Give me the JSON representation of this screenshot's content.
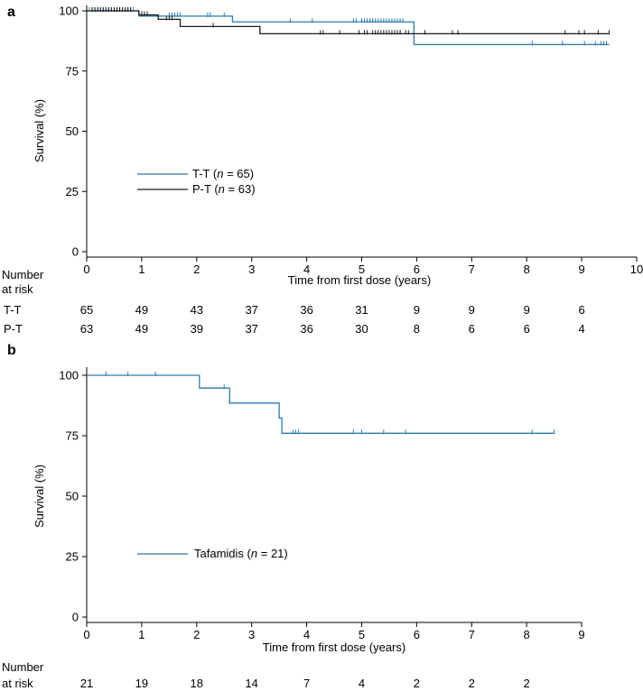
{
  "chart_data": [
    {
      "panel": "a",
      "type": "line",
      "subtype": "kaplan-meier",
      "xlabel": "Time from first dose (years)",
      "ylabel": "Survival (%)",
      "xlim": [
        0,
        10
      ],
      "ylim": [
        0,
        100
      ],
      "xticks": [
        "0",
        "1",
        "2",
        "3",
        "4",
        "5",
        "6",
        "7",
        "8",
        "9",
        "10"
      ],
      "yticks": [
        "0",
        "25",
        "50",
        "75",
        "100"
      ],
      "legend": {
        "placement": "left-middle",
        "entries": [
          {
            "series": "T-T",
            "n": "65"
          },
          {
            "series": "P-T",
            "n": "63"
          }
        ]
      },
      "series": [
        {
          "name": "T-T",
          "color": "#2a7bb0",
          "steps": [
            [
              0,
              100
            ],
            [
              0.95,
              97.8
            ],
            [
              2.65,
              95.4
            ],
            [
              5.95,
              86.0
            ],
            [
              9.5,
              86.0
            ]
          ],
          "censors": [
            0.05,
            0.1,
            0.15,
            0.2,
            0.25,
            0.3,
            0.35,
            0.4,
            0.45,
            0.5,
            0.55,
            0.6,
            0.65,
            0.7,
            0.75,
            0.8,
            0.85,
            1.5,
            1.55,
            1.6,
            1.65,
            1.7,
            2.2,
            2.2,
            2.25,
            2.5,
            3.7,
            4.1,
            4.85,
            4.9,
            5.0,
            5.05,
            5.1,
            5.15,
            5.2,
            5.25,
            5.3,
            5.35,
            5.4,
            5.45,
            5.5,
            5.55,
            5.6,
            5.65,
            5.7,
            5.75,
            8.1,
            8.65,
            9.05,
            9.25,
            9.35,
            9.4,
            9.45
          ]
        },
        {
          "name": "P-T",
          "color": "#1a1a1a",
          "steps": [
            [
              0,
              100
            ],
            [
              0.95,
              98.3
            ],
            [
              1.3,
              96.5
            ],
            [
              1.7,
              93.5
            ],
            [
              3.15,
              90.5
            ],
            [
              9.5,
              90.5
            ]
          ],
          "censors": [
            0.1,
            0.15,
            0.2,
            0.25,
            0.3,
            0.35,
            0.4,
            0.45,
            0.5,
            0.55,
            0.6,
            0.65,
            0.7,
            0.75,
            0.8,
            1.0,
            1.05,
            1.1,
            1.45,
            1.5,
            1.55,
            2.3,
            4.25,
            4.3,
            4.6,
            4.95,
            5.05,
            5.1,
            5.2,
            5.25,
            5.3,
            5.35,
            5.4,
            5.45,
            5.5,
            5.55,
            5.6,
            5.65,
            5.7,
            5.8,
            5.85,
            6.15,
            6.65,
            6.75,
            8.7,
            8.95,
            9.05,
            9.3,
            9.5
          ]
        }
      ],
      "at_risk": {
        "label_line1": "Number",
        "label_line2": "at risk",
        "times": [
          0,
          1,
          2,
          3,
          4,
          5,
          6,
          7,
          8,
          9
        ],
        "rows": [
          {
            "group": "T-T",
            "values": [
              "65",
              "49",
              "43",
              "37",
              "36",
              "31",
              "9",
              "9",
              "9",
              "6"
            ]
          },
          {
            "group": "P-T",
            "values": [
              "63",
              "49",
              "39",
              "37",
              "36",
              "30",
              "8",
              "6",
              "6",
              "4"
            ]
          }
        ]
      }
    },
    {
      "panel": "b",
      "type": "line",
      "subtype": "kaplan-meier",
      "xlabel": "Time from first dose (years)",
      "ylabel": "Survival (%)",
      "xlim": [
        0,
        9
      ],
      "ylim": [
        0,
        100
      ],
      "xticks": [
        "0",
        "1",
        "2",
        "3",
        "4",
        "5",
        "6",
        "7",
        "8",
        "9"
      ],
      "yticks": [
        "0",
        "25",
        "50",
        "75",
        "100"
      ],
      "legend": {
        "placement": "left-middle",
        "entries": [
          {
            "series": "Tafamidis",
            "n": "21"
          }
        ]
      },
      "series": [
        {
          "name": "Tafamidis",
          "color": "#2a7bb0",
          "steps": [
            [
              0,
              100
            ],
            [
              2.05,
              94.7
            ],
            [
              2.6,
              88.5
            ],
            [
              3.5,
              82.3
            ],
            [
              3.55,
              76.0
            ],
            [
              8.5,
              76.0
            ]
          ],
          "censors": [
            0.35,
            0.75,
            1.25,
            2.5,
            2.6,
            3.75,
            3.8,
            3.85,
            4.85,
            5.0,
            5.4,
            5.8,
            8.1,
            8.5
          ]
        }
      ],
      "at_risk": {
        "label_line1": "Number",
        "label_line2": "at risk",
        "times": [
          0,
          1,
          2,
          3,
          4,
          5,
          6,
          7,
          8
        ],
        "rows": [
          {
            "group": "",
            "values": [
              "21",
              "19",
              "18",
              "14",
              "7",
              "4",
              "2",
              "2",
              "2"
            ]
          }
        ]
      }
    }
  ]
}
